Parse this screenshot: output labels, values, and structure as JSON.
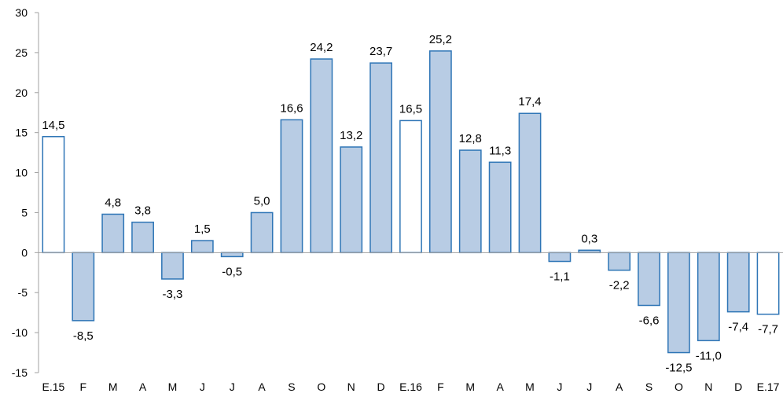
{
  "chart_data": {
    "type": "bar",
    "title": "",
    "xlabel": "",
    "ylabel": "",
    "ylim": [
      -15,
      30
    ],
    "yticks": [
      30,
      25,
      20,
      15,
      10,
      5,
      0,
      -5,
      -10,
      -15
    ],
    "ytick_labels": [
      "30",
      "25",
      "20",
      "15",
      "10",
      "5",
      "0",
      "-5",
      "-10",
      "-15"
    ],
    "grid": false,
    "legend": "none",
    "categories": [
      "E.15",
      "F",
      "M",
      "A",
      "M",
      "J",
      "J",
      "A",
      "S",
      "O",
      "N",
      "D",
      "E.16",
      "F",
      "M",
      "A",
      "M",
      "J",
      "J",
      "A",
      "S",
      "O",
      "N",
      "D",
      "E.17"
    ],
    "values": [
      14.5,
      -8.5,
      4.8,
      3.8,
      -3.3,
      1.5,
      -0.5,
      5.0,
      16.6,
      24.2,
      13.2,
      23.7,
      16.5,
      25.2,
      12.8,
      11.3,
      17.4,
      -1.1,
      0.3,
      -2.2,
      -6.6,
      -12.5,
      -11.0,
      -7.4,
      -7.7
    ],
    "value_labels": [
      "14,5",
      "-8,5",
      "4,8",
      "3,8",
      "-3,3",
      "1,5",
      "-0,5",
      "5,0",
      "16,6",
      "24,2",
      "13,2",
      "23,7",
      "16,5",
      "25,2",
      "12,8",
      "11,3",
      "17,4",
      "-1,1",
      "0,3",
      "-2,2",
      "-6,6",
      "-12,5",
      "-11,0",
      "-7,4",
      "-7,7"
    ],
    "highlighted": [
      true,
      false,
      false,
      false,
      false,
      false,
      false,
      false,
      false,
      false,
      false,
      false,
      true,
      false,
      false,
      false,
      false,
      false,
      false,
      false,
      false,
      false,
      false,
      false,
      true
    ],
    "colors": {
      "bar_fill": "#b8cce4",
      "bar_stroke": "#2e75b6",
      "highlight_fill": "#ffffff",
      "axis": "#a0a0a0"
    }
  }
}
